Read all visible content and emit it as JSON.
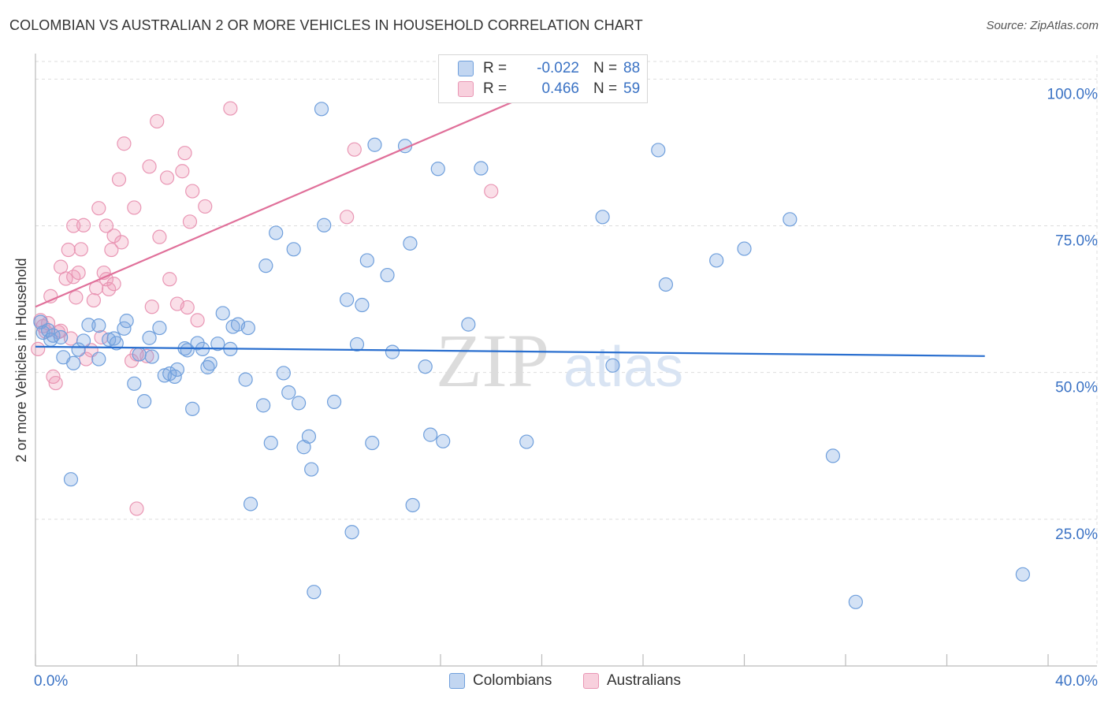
{
  "title": "COLOMBIAN VS AUSTRALIAN 2 OR MORE VEHICLES IN HOUSEHOLD CORRELATION CHART",
  "source": "Source: ZipAtlas.com",
  "watermark": {
    "zip": "ZIP",
    "atlas": "atlas"
  },
  "colors": {
    "blue_fill": "rgba(120,165,225,0.32)",
    "blue_stroke": "#6f9fdc",
    "blue_line": "#2a6fcf",
    "pink_fill": "rgba(240,150,180,0.30)",
    "pink_stroke": "#e996b4",
    "pink_line": "#e0709a",
    "axis_text": "#3a72c4",
    "grid": "#dddddd"
  },
  "legend": {
    "r_label": "R =",
    "n_label": "N =",
    "blue": {
      "r": "-0.022",
      "n": "88"
    },
    "pink": {
      "r": "0.466",
      "n": "59"
    }
  },
  "bottom_legend": {
    "blue": "Colombians",
    "pink": "Australians"
  },
  "chart_data": {
    "type": "scatter",
    "title": "COLOMBIAN VS AUSTRALIAN 2 OR MORE VEHICLES IN HOUSEHOLD CORRELATION CHART",
    "xlabel": "",
    "ylabel": "2 or more Vehicles in Household",
    "xlim": [
      0,
      40
    ],
    "ylim": [
      0,
      103
    ],
    "x_tick_labels": [
      "0.0%",
      "40.0%"
    ],
    "y_ticks": [
      25,
      50,
      75,
      100
    ],
    "y_tick_labels": [
      "25.0%",
      "50.0%",
      "75.0%",
      "100.0%"
    ],
    "grid": true,
    "series": [
      {
        "name": "Colombians",
        "r": -0.022,
        "n": 88,
        "trend": [
          [
            0,
            54.4
          ],
          [
            37.5,
            52.8
          ]
        ],
        "points": [
          [
            0.2,
            58.6
          ],
          [
            0.3,
            56.8
          ],
          [
            0.5,
            57.2
          ],
          [
            0.6,
            55.6
          ],
          [
            0.7,
            56.3
          ],
          [
            1.1,
            52.6
          ],
          [
            1.4,
            31.8
          ],
          [
            1.5,
            51.6
          ],
          [
            1.7,
            53.9
          ],
          [
            1.9,
            55.4
          ],
          [
            2.1,
            58.1
          ],
          [
            2.5,
            58.0
          ],
          [
            2.5,
            52.3
          ],
          [
            2.9,
            55.6
          ],
          [
            3.1,
            55.8
          ],
          [
            3.2,
            55.0
          ],
          [
            3.5,
            57.5
          ],
          [
            3.6,
            58.8
          ],
          [
            3.9,
            48.1
          ],
          [
            4.1,
            53.1
          ],
          [
            4.3,
            45.1
          ],
          [
            4.5,
            55.9
          ],
          [
            4.6,
            52.7
          ],
          [
            4.9,
            57.6
          ],
          [
            5.1,
            49.5
          ],
          [
            5.3,
            49.8
          ],
          [
            5.5,
            49.3
          ],
          [
            5.6,
            50.5
          ],
          [
            5.9,
            54.1
          ],
          [
            6.0,
            53.8
          ],
          [
            6.2,
            43.8
          ],
          [
            6.4,
            55.0
          ],
          [
            6.6,
            54.0
          ],
          [
            6.8,
            50.9
          ],
          [
            6.9,
            51.5
          ],
          [
            7.2,
            54.9
          ],
          [
            7.4,
            60.1
          ],
          [
            7.7,
            54.0
          ],
          [
            7.8,
            57.8
          ],
          [
            8.0,
            58.2
          ],
          [
            8.3,
            48.8
          ],
          [
            8.4,
            57.6
          ],
          [
            8.5,
            27.6
          ],
          [
            9.0,
            44.4
          ],
          [
            9.1,
            68.2
          ],
          [
            9.3,
            38.0
          ],
          [
            9.5,
            73.8
          ],
          [
            9.8,
            49.9
          ],
          [
            10.0,
            46.6
          ],
          [
            10.2,
            71.0
          ],
          [
            10.4,
            44.8
          ],
          [
            10.6,
            37.3
          ],
          [
            10.8,
            39.1
          ],
          [
            10.9,
            33.5
          ],
          [
            11.0,
            12.6
          ],
          [
            11.3,
            94.9
          ],
          [
            11.4,
            75.1
          ],
          [
            11.8,
            45.0
          ],
          [
            12.3,
            62.4
          ],
          [
            12.5,
            22.8
          ],
          [
            12.7,
            54.8
          ],
          [
            12.9,
            61.5
          ],
          [
            13.1,
            69.1
          ],
          [
            13.3,
            38.0
          ],
          [
            13.4,
            88.8
          ],
          [
            13.9,
            66.6
          ],
          [
            14.1,
            53.5
          ],
          [
            14.6,
            88.6
          ],
          [
            14.8,
            72.0
          ],
          [
            14.9,
            27.4
          ],
          [
            15.4,
            51.0
          ],
          [
            15.6,
            39.4
          ],
          [
            15.9,
            84.7
          ],
          [
            16.1,
            38.3
          ],
          [
            17.1,
            58.2
          ],
          [
            17.6,
            84.8
          ],
          [
            19.4,
            38.2
          ],
          [
            22.4,
            76.5
          ],
          [
            22.8,
            51.2
          ],
          [
            24.6,
            87.9
          ],
          [
            24.9,
            65.0
          ],
          [
            26.9,
            69.1
          ],
          [
            28.0,
            71.1
          ],
          [
            29.8,
            76.1
          ],
          [
            31.5,
            35.8
          ],
          [
            32.4,
            10.9
          ],
          [
            39.0,
            15.6
          ],
          [
            1.0,
            56.0
          ]
        ]
      },
      {
        "name": "Australians",
        "r": 0.466,
        "n": 59,
        "trend": [
          [
            0,
            61.2
          ],
          [
            20.2,
            98.6
          ]
        ],
        "points": [
          [
            0.2,
            58.9
          ],
          [
            0.3,
            57.9
          ],
          [
            0.4,
            57.0
          ],
          [
            0.5,
            58.4
          ],
          [
            0.6,
            63.0
          ],
          [
            0.7,
            49.3
          ],
          [
            0.8,
            48.2
          ],
          [
            0.9,
            56.9
          ],
          [
            1.0,
            57.1
          ],
          [
            1.0,
            68.0
          ],
          [
            1.2,
            66.0
          ],
          [
            1.3,
            70.9
          ],
          [
            1.4,
            55.8
          ],
          [
            1.5,
            66.3
          ],
          [
            1.5,
            75.0
          ],
          [
            1.6,
            62.8
          ],
          [
            1.7,
            67.0
          ],
          [
            1.8,
            71.0
          ],
          [
            1.9,
            75.1
          ],
          [
            2.0,
            52.3
          ],
          [
            2.2,
            53.8
          ],
          [
            2.3,
            62.3
          ],
          [
            2.4,
            64.4
          ],
          [
            2.5,
            78.0
          ],
          [
            2.6,
            56.0
          ],
          [
            2.7,
            67.0
          ],
          [
            2.8,
            65.9
          ],
          [
            2.8,
            75.0
          ],
          [
            2.9,
            64.2
          ],
          [
            3.0,
            70.9
          ],
          [
            3.1,
            73.3
          ],
          [
            3.1,
            65.1
          ],
          [
            3.3,
            82.9
          ],
          [
            3.4,
            72.2
          ],
          [
            3.5,
            89.0
          ],
          [
            3.8,
            52.0
          ],
          [
            3.9,
            78.1
          ],
          [
            4.0,
            53.1
          ],
          [
            4.4,
            52.8
          ],
          [
            4.5,
            85.1
          ],
          [
            4.6,
            61.2
          ],
          [
            4.8,
            92.8
          ],
          [
            4.9,
            73.1
          ],
          [
            5.2,
            83.2
          ],
          [
            5.3,
            65.9
          ],
          [
            5.6,
            61.7
          ],
          [
            5.8,
            84.3
          ],
          [
            5.9,
            87.4
          ],
          [
            6.0,
            61.1
          ],
          [
            6.1,
            75.7
          ],
          [
            6.2,
            80.9
          ],
          [
            6.4,
            58.9
          ],
          [
            6.7,
            78.3
          ],
          [
            7.7,
            95.0
          ],
          [
            12.3,
            76.5
          ],
          [
            12.6,
            88.0
          ],
          [
            18.0,
            80.9
          ],
          [
            4.0,
            26.8
          ],
          [
            0.1,
            54.0
          ]
        ]
      }
    ]
  }
}
